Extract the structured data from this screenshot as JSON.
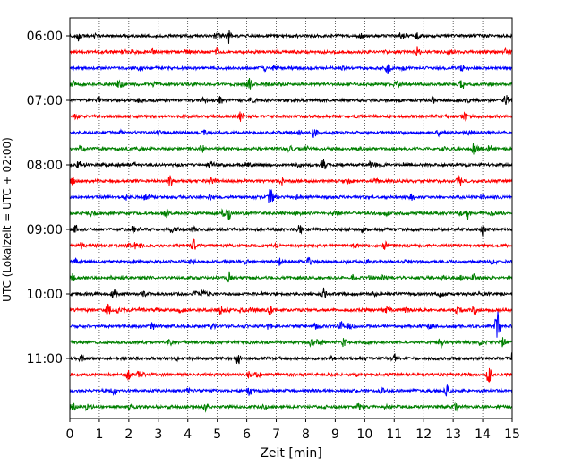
{
  "chart_data": {
    "type": "line",
    "title": "",
    "xlabel": "Zeit  [min]",
    "ylabel": "UTC (Lokalzeit = UTC + 02:00)",
    "xlim": [
      0,
      15
    ],
    "xticks": [
      0,
      1,
      2,
      3,
      4,
      5,
      6,
      7,
      8,
      9,
      10,
      11,
      12,
      13,
      14,
      15
    ],
    "grid": "vertical dotted at each minute",
    "row_interval_minutes": 15,
    "start_time": "06:00",
    "ytick_labels": [
      "06:00",
      "07:00",
      "08:00",
      "09:00",
      "10:00",
      "11:00"
    ],
    "ytick_row_indices": [
      0,
      4,
      8,
      12,
      16,
      20
    ],
    "color_cycle": [
      "#000000",
      "#ff0000",
      "#0000ff",
      "#008000"
    ],
    "series": [
      {
        "row": 0,
        "events": [
          [
            0.3,
            0.6
          ],
          [
            5.4,
            0.7
          ],
          [
            9.9,
            0.25
          ],
          [
            11.8,
            0.3
          ]
        ]
      },
      {
        "row": 1,
        "events": [
          [
            2.8,
            0.25
          ],
          [
            5.0,
            0.25
          ],
          [
            11.8,
            0.6
          ]
        ]
      },
      {
        "row": 2,
        "events": [
          [
            2.4,
            0.2
          ],
          [
            6.6,
            0.25
          ],
          [
            10.8,
            0.6
          ],
          [
            13.3,
            0.25
          ]
        ]
      },
      {
        "row": 3,
        "events": [
          [
            0.1,
            0.35
          ],
          [
            6.1,
            0.55
          ],
          [
            13.3,
            0.5
          ]
        ]
      },
      {
        "row": 4,
        "events": [
          [
            1.0,
            0.3
          ],
          [
            5.1,
            0.35
          ],
          [
            12.3,
            0.3
          ],
          [
            14.8,
            0.55
          ]
        ]
      },
      {
        "row": 5,
        "events": [
          [
            5.8,
            0.55
          ],
          [
            13.4,
            0.55
          ]
        ]
      },
      {
        "row": 6,
        "events": [
          [
            3.0,
            0.2
          ],
          [
            8.3,
            0.55
          ],
          [
            12.5,
            0.25
          ]
        ]
      },
      {
        "row": 7,
        "events": [
          [
            4.5,
            0.45
          ],
          [
            8.0,
            0.25
          ],
          [
            13.7,
            0.7
          ]
        ]
      },
      {
        "row": 8,
        "events": [
          [
            0.3,
            0.3
          ],
          [
            4.8,
            0.5
          ],
          [
            8.6,
            0.55
          ],
          [
            10.2,
            0.3
          ]
        ]
      },
      {
        "row": 9,
        "events": [
          [
            0.1,
            0.4
          ],
          [
            3.4,
            0.5
          ],
          [
            7.2,
            0.3
          ],
          [
            13.2,
            0.55
          ]
        ]
      },
      {
        "row": 10,
        "events": [
          [
            1.9,
            0.25
          ],
          [
            4.8,
            0.35
          ],
          [
            6.8,
            0.6
          ],
          [
            11.6,
            0.25
          ]
        ]
      },
      {
        "row": 11,
        "events": [
          [
            3.3,
            0.35
          ],
          [
            5.4,
            0.5
          ],
          [
            13.5,
            0.5
          ]
        ]
      },
      {
        "row": 12,
        "events": [
          [
            0.2,
            0.5
          ],
          [
            4.2,
            0.3
          ],
          [
            7.8,
            0.5
          ],
          [
            14.0,
            0.5
          ]
        ]
      },
      {
        "row": 13,
        "events": [
          [
            0.4,
            0.3
          ],
          [
            4.2,
            0.55
          ],
          [
            10.7,
            0.4
          ]
        ]
      },
      {
        "row": 14,
        "events": [
          [
            0.2,
            0.3
          ],
          [
            7.1,
            0.3
          ],
          [
            8.1,
            0.35
          ],
          [
            11.4,
            0.25
          ]
        ]
      },
      {
        "row": 15,
        "events": [
          [
            0.1,
            0.35
          ],
          [
            5.4,
            0.5
          ],
          [
            9.6,
            0.3
          ],
          [
            13.7,
            0.3
          ]
        ]
      },
      {
        "row": 16,
        "events": [
          [
            1.5,
            0.55
          ],
          [
            8.6,
            0.5
          ],
          [
            12.6,
            0.25
          ]
        ]
      },
      {
        "row": 17,
        "events": [
          [
            1.3,
            0.45
          ],
          [
            5.1,
            0.45
          ],
          [
            6.8,
            0.5
          ],
          [
            13.7,
            0.6
          ]
        ]
      },
      {
        "row": 18,
        "events": [
          [
            2.8,
            0.3
          ],
          [
            9.2,
            0.5
          ],
          [
            14.5,
            1.6
          ]
        ]
      },
      {
        "row": 19,
        "events": [
          [
            3.4,
            0.35
          ],
          [
            8.2,
            0.35
          ],
          [
            9.3,
            0.5
          ],
          [
            12.6,
            0.55
          ],
          [
            14.7,
            0.45
          ]
        ]
      },
      {
        "row": 20,
        "events": [
          [
            0.4,
            0.3
          ],
          [
            5.7,
            0.55
          ],
          [
            11.0,
            0.45
          ],
          [
            15.0,
            0.5
          ]
        ]
      },
      {
        "row": 21,
        "events": [
          [
            2.0,
            0.55
          ],
          [
            6.1,
            0.4
          ],
          [
            14.2,
            0.6
          ]
        ]
      },
      {
        "row": 22,
        "events": [
          [
            1.5,
            0.4
          ],
          [
            6.1,
            0.5
          ],
          [
            10.6,
            0.3
          ],
          [
            12.8,
            0.6
          ]
        ]
      },
      {
        "row": 23,
        "events": [
          [
            0.1,
            0.45
          ],
          [
            4.6,
            0.35
          ],
          [
            9.8,
            0.3
          ],
          [
            13.1,
            0.45
          ]
        ]
      }
    ]
  }
}
